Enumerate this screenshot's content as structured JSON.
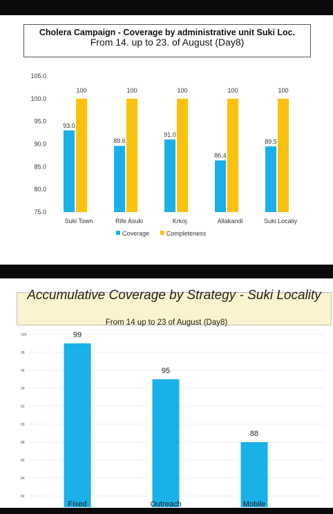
{
  "chart_data": [
    {
      "type": "bar",
      "title": "Cholera Campaign - Coverage by administrative unit  Suki  Loc.",
      "subtitle": "From 14. up to 23.  of August (Day8)",
      "categories": [
        "Suki Town",
        "Rife Asuki",
        "Krkoj",
        "Allakandi",
        "Suki Localiy"
      ],
      "series": [
        {
          "name": "Coverage",
          "values": [
            93.0,
            89.6,
            91.0,
            86.4,
            89.5
          ],
          "labels": [
            "93.0",
            "89.6",
            "91.0",
            "86.4",
            "89.5"
          ],
          "color": "#1ab0e8"
        },
        {
          "name": "Completeness",
          "values": [
            100,
            100,
            100,
            100,
            100
          ],
          "labels": [
            "100",
            "100",
            "100",
            "100",
            "100"
          ],
          "color": "#fcc10c"
        }
      ],
      "yticks": [
        "105.0",
        "100.0",
        "95.0",
        "90.0",
        "85.0",
        "80.0",
        "75.0"
      ],
      "ylim": [
        75,
        105
      ],
      "legend": "bottom"
    },
    {
      "type": "bar",
      "title": "Accumulative Coverage by Strategy - Suki Locality",
      "subtitle": "From 14 up to 23 of August (Day8)",
      "categories": [
        "Fixed",
        "Outreach",
        "Mobile"
      ],
      "series": [
        {
          "name": "Coverage",
          "values": [
            99,
            95,
            88
          ],
          "labels": [
            "99",
            "95",
            "88"
          ],
          "color": "#1ab0e8"
        }
      ],
      "yticks": [
        "100",
        "98",
        "96",
        "94",
        "92",
        "90",
        "88",
        "86",
        "84",
        "82"
      ],
      "ylim": [
        82,
        100
      ],
      "legend": "none"
    }
  ]
}
